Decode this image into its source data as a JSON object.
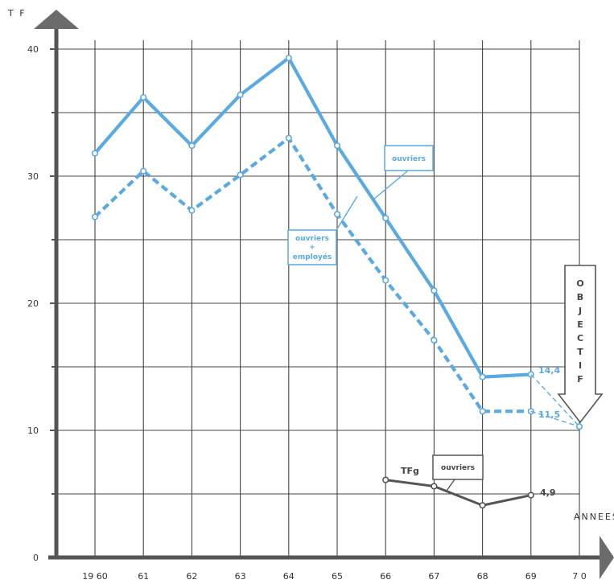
{
  "chart_data": {
    "type": "line",
    "ylabel": "T F",
    "xlabel": "ANNEES",
    "ylim": [
      0,
      40
    ],
    "y_ticks": [
      "0",
      "10",
      "20",
      "30",
      "40"
    ],
    "x": [
      1960,
      1961,
      1962,
      1963,
      1964,
      1965,
      1966,
      1967,
      1968,
      1969,
      1970
    ],
    "x_tick_labels": [
      "19 60",
      "61",
      "62",
      "63",
      "64",
      "65",
      "66",
      "67",
      "68",
      "69",
      "7 0"
    ],
    "grid": true,
    "objectif_text": "OBJECTIF",
    "objectif_value": 10.3,
    "series": [
      {
        "name": "ouvriers",
        "style": "solid",
        "color": "#5aa9e0",
        "x": [
          1960,
          1961,
          1962,
          1963,
          1964,
          1965,
          1966,
          1967,
          1968,
          1969
        ],
        "values": [
          31.8,
          36.2,
          32.4,
          36.4,
          39.3,
          32.4,
          26.7,
          21.0,
          14.2,
          14.4
        ]
      },
      {
        "name": "ouvriers + employés",
        "style": "dashed",
        "color": "#5aa9e0",
        "x": [
          1960,
          1961,
          1962,
          1963,
          1964,
          1965,
          1966,
          1967,
          1968,
          1969
        ],
        "values": [
          26.8,
          30.4,
          27.3,
          30.1,
          33.0,
          27.0,
          21.8,
          17.1,
          11.5,
          11.5
        ]
      },
      {
        "name": "TFg ouvriers",
        "style": "solid",
        "color": "#555555",
        "x": [
          1966,
          1967,
          1968,
          1969
        ],
        "values": [
          6.1,
          5.6,
          4.1,
          4.9
        ]
      }
    ],
    "annotations": {
      "ouvriers_box": "ouvriers",
      "ouvriers_employes_line1": "ouvriers",
      "ouvriers_employes_plus": "+",
      "ouvriers_employes_line2": "employés",
      "tfg_label": "TFg",
      "tfg_box": "ouvriers",
      "val_ouvriers_1969": "14,4",
      "val_employes_1969": "11,5",
      "val_tfg_1969": "4,9"
    }
  }
}
